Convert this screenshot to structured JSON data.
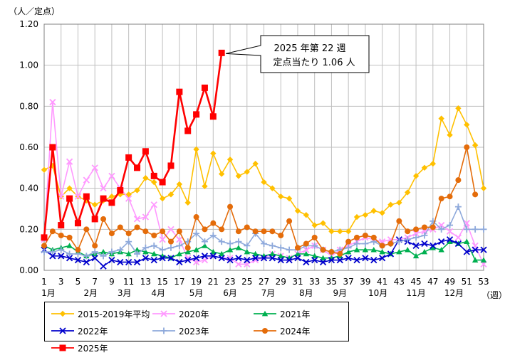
{
  "chart_data": {
    "type": "line",
    "y_unit_label": "（人／定点）",
    "x_unit_label": "（週）",
    "ylim": [
      0,
      1.2
    ],
    "y_ticks": [
      "0.00",
      "0.20",
      "0.40",
      "0.60",
      "0.80",
      "1.00",
      "1.20"
    ],
    "x_week_ticks": [
      "1",
      "3",
      "5",
      "7",
      "9",
      "11",
      "13",
      "15",
      "17",
      "19",
      "21",
      "23",
      "25",
      "27",
      "29",
      "31",
      "33",
      "35",
      "37",
      "39",
      "41",
      "43",
      "45",
      "47",
      "49",
      "51",
      "53"
    ],
    "month_labels": [
      {
        "label": "1月",
        "week": 1.5
      },
      {
        "label": "2月",
        "week": 6.5
      },
      {
        "label": "3月",
        "week": 10.5
      },
      {
        "label": "4月",
        "week": 14.5
      },
      {
        "label": "5月",
        "week": 19.0
      },
      {
        "label": "6月",
        "week": 23.0
      },
      {
        "label": "7月",
        "week": 27.5
      },
      {
        "label": "8月",
        "week": 32.0
      },
      {
        "label": "9月",
        "week": 36.0
      },
      {
        "label": "10月",
        "week": 40.5
      },
      {
        "label": "11月",
        "week": 45.0
      },
      {
        "label": "12月",
        "week": 49.5
      }
    ],
    "grid": true,
    "legend_position": "bottom-left",
    "annotation": {
      "line1": "2025 年第 22 週",
      "line2": "定点当たり 1.06 人",
      "week": 22,
      "value": 1.06
    },
    "series": [
      {
        "name": "2015-2019年平均",
        "color": "#FFC000",
        "marker": "diamond",
        "values": [
          0.49,
          0.51,
          0.36,
          0.4,
          0.36,
          0.34,
          0.32,
          0.34,
          0.36,
          0.37,
          0.37,
          0.39,
          0.45,
          0.43,
          0.35,
          0.37,
          0.42,
          0.33,
          0.59,
          0.41,
          0.57,
          0.47,
          0.54,
          0.46,
          0.48,
          0.52,
          0.43,
          0.4,
          0.36,
          0.35,
          0.29,
          0.27,
          0.22,
          0.23,
          0.19,
          0.19,
          0.19,
          0.26,
          0.27,
          0.29,
          0.28,
          0.32,
          0.33,
          0.38,
          0.46,
          0.5,
          0.52,
          0.74,
          0.66,
          0.79,
          0.71,
          0.61,
          0.4
        ]
      },
      {
        "name": "2020年",
        "color": "#FF99FF",
        "marker": "x",
        "values": [
          0.15,
          0.82,
          0.36,
          0.53,
          0.36,
          0.44,
          0.5,
          0.4,
          0.46,
          0.4,
          0.35,
          0.25,
          0.26,
          0.32,
          0.15,
          0.2,
          0.15,
          0.06,
          0.04,
          0.05,
          0.07,
          0.06,
          0.06,
          0.03,
          0.03,
          0.05,
          0.06,
          0.08,
          0.07,
          0.06,
          0.08,
          0.1,
          0.12,
          0.1,
          0.07,
          0.1,
          0.12,
          0.14,
          0.16,
          0.15,
          0.14,
          0.15,
          0.15,
          0.16,
          0.18,
          0.19,
          0.2,
          0.22,
          0.19,
          0.16,
          0.23,
          0.12,
          0.03
        ]
      },
      {
        "name": "2021年",
        "color": "#00B050",
        "marker": "triangle",
        "values": [
          0.12,
          0.1,
          0.11,
          0.12,
          0.09,
          0.07,
          0.08,
          0.09,
          0.08,
          0.09,
          0.08,
          0.1,
          0.09,
          0.08,
          0.07,
          0.06,
          0.08,
          0.09,
          0.1,
          0.12,
          0.09,
          0.08,
          0.1,
          0.11,
          0.09,
          0.08,
          0.07,
          0.08,
          0.07,
          0.06,
          0.08,
          0.08,
          0.07,
          0.06,
          0.06,
          0.07,
          0.09,
          0.1,
          0.1,
          0.1,
          0.09,
          0.08,
          0.09,
          0.1,
          0.07,
          0.09,
          0.11,
          0.1,
          0.14,
          0.13,
          0.14,
          0.05,
          0.05
        ]
      },
      {
        "name": "2022年",
        "color": "#0000CC",
        "marker": "x",
        "values": [
          0.1,
          0.07,
          0.07,
          0.06,
          0.05,
          0.04,
          0.06,
          0.02,
          0.05,
          0.04,
          0.04,
          0.04,
          0.06,
          0.05,
          0.06,
          0.06,
          0.04,
          0.05,
          0.06,
          0.07,
          0.07,
          0.06,
          0.05,
          0.06,
          0.05,
          0.06,
          0.06,
          0.06,
          0.05,
          0.05,
          0.06,
          0.04,
          0.05,
          0.04,
          0.05,
          0.05,
          0.06,
          0.05,
          0.06,
          0.05,
          0.06,
          0.08,
          0.15,
          0.14,
          0.12,
          0.13,
          0.12,
          0.14,
          0.15,
          0.13,
          0.09,
          0.1,
          0.1
        ]
      },
      {
        "name": "2023年",
        "color": "#8EA9DB",
        "marker": "plus",
        "values": [
          0.09,
          0.09,
          0.1,
          0.08,
          0.08,
          0.07,
          0.09,
          0.07,
          0.09,
          0.1,
          0.14,
          0.08,
          0.11,
          0.12,
          0.1,
          0.11,
          0.12,
          0.14,
          0.18,
          0.14,
          0.17,
          0.14,
          0.13,
          0.14,
          0.12,
          0.18,
          0.13,
          0.12,
          0.11,
          0.1,
          0.1,
          0.12,
          0.12,
          0.1,
          0.09,
          0.1,
          0.11,
          0.13,
          0.13,
          0.14,
          0.12,
          0.13,
          0.14,
          0.15,
          0.16,
          0.17,
          0.24,
          0.2,
          0.22,
          0.31,
          0.2,
          0.2,
          0.2
        ]
      },
      {
        "name": "2024年",
        "color": "#E46C0A",
        "marker": "circle",
        "values": [
          0.12,
          0.19,
          0.17,
          0.16,
          0.1,
          0.2,
          0.12,
          0.25,
          0.18,
          0.21,
          0.18,
          0.21,
          0.19,
          0.17,
          0.19,
          0.14,
          0.19,
          0.11,
          0.26,
          0.2,
          0.23,
          0.2,
          0.31,
          0.19,
          0.21,
          0.19,
          0.19,
          0.19,
          0.17,
          0.24,
          0.11,
          0.13,
          0.16,
          0.1,
          0.09,
          0.08,
          0.14,
          0.16,
          0.17,
          0.16,
          0.12,
          0.13,
          0.24,
          0.19,
          0.2,
          0.21,
          0.21,
          0.35,
          0.36,
          0.44,
          0.6,
          0.37
        ]
      },
      {
        "name": "2025年",
        "color": "#FF0000",
        "marker": "square",
        "values": [
          0.16,
          0.6,
          0.22,
          0.35,
          0.23,
          0.36,
          0.25,
          0.35,
          0.33,
          0.39,
          0.55,
          0.5,
          0.58,
          0.46,
          0.43,
          0.51,
          0.87,
          0.68,
          0.76,
          0.89,
          0.75,
          1.06
        ]
      }
    ]
  }
}
